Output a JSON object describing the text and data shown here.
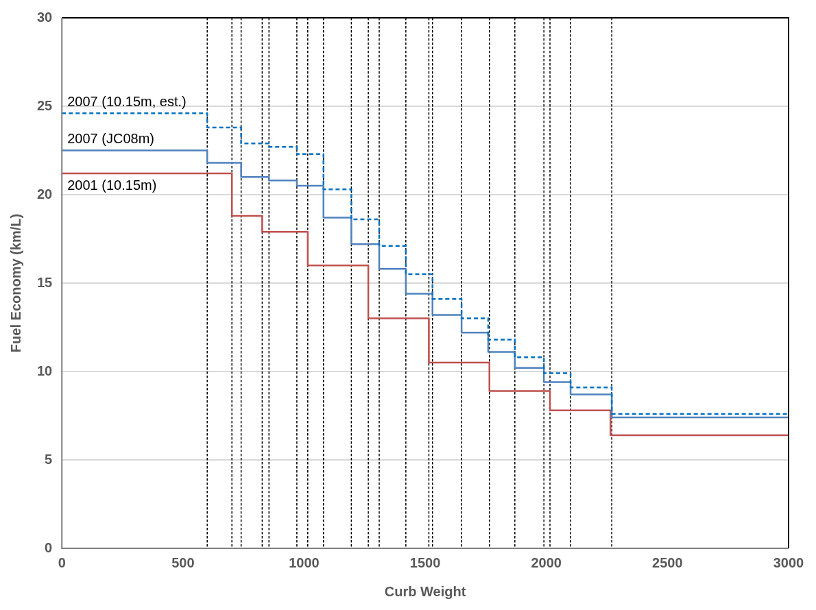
{
  "chart_data": {
    "type": "step",
    "xlabel": "Curb Weight",
    "ylabel": "Fuel Economy (km/L)",
    "xlim": [
      0,
      3000
    ],
    "xticks": [
      0,
      500,
      1000,
      1500,
      2000,
      2500,
      3000
    ],
    "ylim": [
      0,
      30
    ],
    "yticks": [
      0,
      5,
      10,
      15,
      20,
      25,
      30
    ],
    "grid": "y",
    "legend": false,
    "series": [
      {
        "name": "2007 (10.15m, est.)",
        "color": "#0070c0",
        "line_style": "dashed",
        "x": [
          0,
          600,
          740,
          855,
          970,
          1080,
          1195,
          1310,
          1420,
          1530,
          1650,
          1760,
          1870,
          1990,
          2100,
          2270,
          3000
        ],
        "values": [
          24.6,
          23.8,
          22.9,
          22.7,
          22.3,
          20.3,
          18.6,
          17.1,
          15.5,
          14.1,
          13.0,
          11.8,
          10.8,
          9.9,
          9.1,
          7.6,
          7.6
        ]
      },
      {
        "name": "2007 (JC08m)",
        "color": "#4f81bd",
        "line_style": "solid",
        "x": [
          0,
          600,
          740,
          855,
          970,
          1080,
          1195,
          1310,
          1420,
          1530,
          1650,
          1760,
          1870,
          1990,
          2100,
          2270,
          3000
        ],
        "values": [
          22.5,
          21.8,
          21.0,
          20.8,
          20.5,
          18.7,
          17.2,
          15.8,
          14.4,
          13.2,
          12.2,
          11.1,
          10.2,
          9.4,
          8.7,
          7.4,
          7.4
        ]
      },
      {
        "name": "2001 (10.15m)",
        "color": "#c0504d",
        "line_style": "solid",
        "x": [
          0,
          702,
          827,
          1015,
          1265,
          1515,
          1765,
          2015,
          2265,
          3000
        ],
        "values": [
          21.2,
          18.8,
          17.9,
          16.0,
          13.0,
          10.5,
          8.9,
          7.8,
          6.4,
          6.4
        ]
      }
    ],
    "ref_lines": [
      {
        "axis": "x",
        "value": 600,
        "color": "#000000",
        "line_style": "dashed"
      },
      {
        "axis": "x",
        "value": 702,
        "color": "#000000",
        "line_style": "dashed"
      },
      {
        "axis": "x",
        "value": 740,
        "color": "#000000",
        "line_style": "dashed"
      },
      {
        "axis": "x",
        "value": 827,
        "color": "#000000",
        "line_style": "dashed"
      },
      {
        "axis": "x",
        "value": 855,
        "color": "#000000",
        "line_style": "dashed"
      },
      {
        "axis": "x",
        "value": 970,
        "color": "#000000",
        "line_style": "dashed"
      },
      {
        "axis": "x",
        "value": 1015,
        "color": "#000000",
        "line_style": "dashed"
      },
      {
        "axis": "x",
        "value": 1080,
        "color": "#000000",
        "line_style": "dashed"
      },
      {
        "axis": "x",
        "value": 1195,
        "color": "#000000",
        "line_style": "dashed"
      },
      {
        "axis": "x",
        "value": 1265,
        "color": "#000000",
        "line_style": "dashed"
      },
      {
        "axis": "x",
        "value": 1310,
        "color": "#000000",
        "line_style": "dashed"
      },
      {
        "axis": "x",
        "value": 1420,
        "color": "#000000",
        "line_style": "dashed"
      },
      {
        "axis": "x",
        "value": 1515,
        "color": "#000000",
        "line_style": "dashed"
      },
      {
        "axis": "x",
        "value": 1530,
        "color": "#000000",
        "line_style": "dashed"
      },
      {
        "axis": "x",
        "value": 1650,
        "color": "#000000",
        "line_style": "dashed"
      },
      {
        "axis": "x",
        "value": 1765,
        "color": "#000000",
        "line_style": "dashed"
      },
      {
        "axis": "x",
        "value": 1870,
        "color": "#000000",
        "line_style": "dashed"
      },
      {
        "axis": "x",
        "value": 1990,
        "color": "#000000",
        "line_style": "dashed"
      },
      {
        "axis": "x",
        "value": 2015,
        "color": "#000000",
        "line_style": "dashed"
      },
      {
        "axis": "x",
        "value": 2100,
        "color": "#000000",
        "line_style": "dashed"
      },
      {
        "axis": "x",
        "value": 2270,
        "color": "#000000",
        "line_style": "dashed"
      }
    ]
  }
}
